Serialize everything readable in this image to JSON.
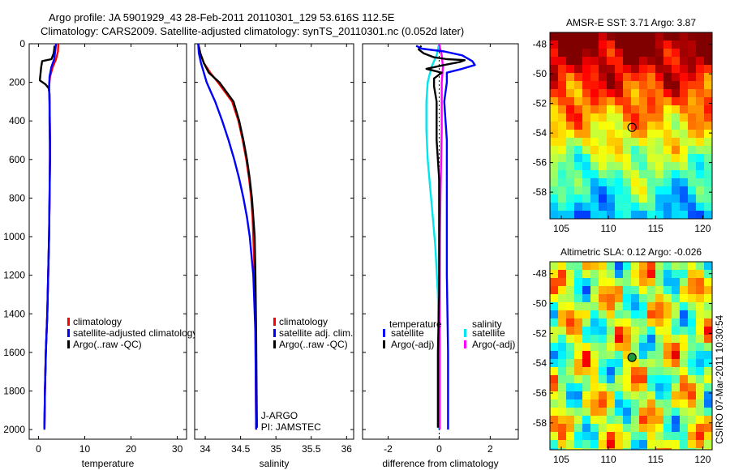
{
  "header": {
    "line1": "Argo profile: JA 5901929_43 28-Feb-2011 20110301_129 53.616S 112.5E",
    "line2": "Climatology: CARS2009. Satellite-adjusted climatology: synTS_20110301.nc (0.052d later)"
  },
  "side_label": "CSIRO 07-Mar-2011 10:30:54",
  "chart_data": [
    {
      "type": "line",
      "id": "temperature",
      "xlabel": "temperature",
      "ylabel": "",
      "xlim": [
        -2,
        32
      ],
      "ylim": [
        2050,
        0
      ],
      "xticks": [
        {
          "v": 0,
          "label": "0"
        },
        {
          "v": 10,
          "label": "10"
        },
        {
          "v": 20,
          "label": "20"
        },
        {
          "v": 30,
          "label": "30"
        }
      ],
      "yticks": [
        {
          "v": 0,
          "label": "0"
        },
        {
          "v": 200,
          "label": "200"
        },
        {
          "v": 400,
          "label": "400"
        },
        {
          "v": 600,
          "label": "600"
        },
        {
          "v": 800,
          "label": "800"
        },
        {
          "v": 1000,
          "label": "1000"
        },
        {
          "v": 1200,
          "label": "1200"
        },
        {
          "v": 1400,
          "label": "1400"
        },
        {
          "v": 1600,
          "label": "1600"
        },
        {
          "v": 1800,
          "label": "1800"
        },
        {
          "v": 2000,
          "label": "2000"
        }
      ],
      "legend": [
        {
          "label": "climatology",
          "color": "#ff0000"
        },
        {
          "label": "satellite-adjusted climatology",
          "color": "#0000ff"
        },
        {
          "label": "Argo(..raw -QC)",
          "color": "#000000"
        }
      ],
      "series": [
        {
          "name": "climatology",
          "color": "#ff0000",
          "points": [
            [
              4.3,
              0
            ],
            [
              4.2,
              40
            ],
            [
              3.8,
              80
            ],
            [
              3.1,
              120
            ],
            [
              2.5,
              170
            ],
            [
              2.3,
              220
            ],
            [
              2.4,
              300
            ],
            [
              2.5,
              500
            ],
            [
              2.4,
              800
            ],
            [
              2.3,
              1000
            ],
            [
              2.1,
              1200
            ],
            [
              1.9,
              1400
            ],
            [
              1.6,
              1600
            ],
            [
              1.4,
              1800
            ],
            [
              1.3,
              2000
            ]
          ]
        },
        {
          "name": "Argo(..raw -QC)",
          "color": "#000000",
          "points": [
            [
              3.5,
              10
            ],
            [
              3.3,
              50
            ],
            [
              2.8,
              80
            ],
            [
              0.8,
              90
            ],
            [
              0.6,
              120
            ],
            [
              0.3,
              190
            ],
            [
              1.5,
              210
            ],
            [
              2.2,
              230
            ],
            [
              2.4,
              260
            ],
            [
              2.4,
              400
            ],
            [
              2.5,
              600
            ],
            [
              2.4,
              800
            ],
            [
              2.3,
              1000
            ],
            [
              2.1,
              1200
            ],
            [
              1.9,
              1400
            ],
            [
              1.6,
              1600
            ],
            [
              1.4,
              1800
            ],
            [
              1.3,
              1990
            ]
          ]
        },
        {
          "name": "satellite-adjusted climatology",
          "color": "#0000ff",
          "points": [
            [
              3.8,
              0
            ],
            [
              3.6,
              40
            ],
            [
              3.4,
              80
            ],
            [
              2.8,
              120
            ],
            [
              2.4,
              170
            ],
            [
              2.3,
              230
            ],
            [
              2.4,
              300
            ],
            [
              2.5,
              500
            ],
            [
              2.4,
              800
            ],
            [
              2.3,
              1000
            ],
            [
              2.1,
              1200
            ],
            [
              1.9,
              1400
            ],
            [
              1.6,
              1600
            ],
            [
              1.4,
              1800
            ],
            [
              1.3,
              2000
            ]
          ]
        }
      ],
      "annotations": []
    },
    {
      "type": "line",
      "id": "salinity",
      "xlabel": "salinity",
      "ylabel": "",
      "xlim": [
        33.85,
        36.1
      ],
      "ylim": [
        2050,
        0
      ],
      "xticks": [
        {
          "v": 34,
          "label": "34"
        },
        {
          "v": 34.5,
          "label": "34.5"
        },
        {
          "v": 35,
          "label": "35"
        },
        {
          "v": 35.5,
          "label": "35.5"
        },
        {
          "v": 36,
          "label": "36"
        }
      ],
      "legend": [
        {
          "label": "climatology",
          "color": "#ff0000"
        },
        {
          "label": "satellite adj. clim.",
          "color": "#0000ff"
        },
        {
          "label": "Argo(..raw -QC)",
          "color": "#000000"
        }
      ],
      "series": [
        {
          "name": "climatology",
          "color": "#ff0000",
          "points": [
            [
              33.9,
              0
            ],
            [
              33.93,
              50
            ],
            [
              33.98,
              100
            ],
            [
              34.07,
              150
            ],
            [
              34.18,
              200
            ],
            [
              34.28,
              250
            ],
            [
              34.38,
              300
            ],
            [
              34.47,
              400
            ],
            [
              34.53,
              500
            ],
            [
              34.58,
              600
            ],
            [
              34.62,
              700
            ],
            [
              34.65,
              800
            ],
            [
              34.67,
              900
            ],
            [
              34.68,
              1000
            ],
            [
              34.7,
              1200
            ],
            [
              34.71,
              1500
            ],
            [
              34.72,
              2000
            ]
          ]
        },
        {
          "name": "Argo(..raw -QC)",
          "color": "#000000",
          "points": [
            [
              33.9,
              0
            ],
            [
              33.93,
              50
            ],
            [
              33.98,
              100
            ],
            [
              34.05,
              150
            ],
            [
              34.2,
              200
            ],
            [
              34.3,
              250
            ],
            [
              34.4,
              300
            ],
            [
              34.48,
              400
            ],
            [
              34.54,
              500
            ],
            [
              34.59,
              600
            ],
            [
              34.63,
              700
            ],
            [
              34.66,
              800
            ],
            [
              34.68,
              900
            ],
            [
              34.7,
              1000
            ],
            [
              34.71,
              1200
            ],
            [
              34.72,
              1500
            ],
            [
              34.73,
              1990
            ]
          ]
        },
        {
          "name": "satellite adj. clim.",
          "color": "#0000ff",
          "points": [
            [
              33.9,
              0
            ],
            [
              33.91,
              50
            ],
            [
              33.94,
              100
            ],
            [
              33.98,
              150
            ],
            [
              34.02,
              200
            ],
            [
              34.08,
              250
            ],
            [
              34.14,
              300
            ],
            [
              34.24,
              400
            ],
            [
              34.33,
              500
            ],
            [
              34.41,
              600
            ],
            [
              34.48,
              700
            ],
            [
              34.54,
              800
            ],
            [
              34.59,
              900
            ],
            [
              34.63,
              1000
            ],
            [
              34.68,
              1200
            ],
            [
              34.71,
              1500
            ],
            [
              34.72,
              2000
            ]
          ]
        }
      ],
      "annotations": [
        "J-ARGO",
        "PI: JAMSTEC"
      ]
    },
    {
      "type": "line",
      "id": "difference",
      "xlabel": "difference from climatology",
      "ylabel": "",
      "xlim": [
        -3,
        3.1
      ],
      "ylim": [
        2050,
        0
      ],
      "xticks": [
        {
          "v": -2,
          "label": "-2"
        },
        {
          "v": 0,
          "label": "0"
        },
        {
          "v": 2,
          "label": "2"
        }
      ],
      "legend_groups": [
        {
          "title": "temperature",
          "items": [
            {
              "label": "satellite",
              "color": "#0000ff"
            },
            {
              "label": "Argo(-adj)",
              "color": "#000000"
            }
          ]
        },
        {
          "title": "salinity",
          "items": [
            {
              "label": "satellite",
              "color": "#00e5ee"
            },
            {
              "label": "Argo(-adj)",
              "color": "#ff00ff"
            }
          ]
        }
      ],
      "series": [
        {
          "name": "salinity satellite",
          "color": "#00e5ee",
          "points": [
            [
              0,
              0
            ],
            [
              -0.1,
              60
            ],
            [
              -0.3,
              120
            ],
            [
              -0.45,
              200
            ],
            [
              -0.5,
              300
            ],
            [
              -0.5,
              450
            ],
            [
              -0.45,
              600
            ],
            [
              -0.35,
              750
            ],
            [
              -0.25,
              900
            ],
            [
              -0.15,
              1050
            ],
            [
              -0.05,
              1300
            ],
            [
              0,
              1600
            ],
            [
              0,
              2000
            ]
          ]
        },
        {
          "name": "salinity Argo(-adj)",
          "color": "#ff00ff",
          "points": [
            [
              0,
              0
            ],
            [
              0.1,
              60
            ],
            [
              0.15,
              120
            ],
            [
              0.1,
              200
            ],
            [
              0.1,
              300
            ],
            [
              0.1,
              450
            ],
            [
              0.08,
              600
            ],
            [
              0.05,
              800
            ],
            [
              0.03,
              1000
            ],
            [
              0.02,
              1300
            ],
            [
              0.02,
              2000
            ]
          ]
        },
        {
          "name": "temperature Argo(-adj)",
          "color": "#000000",
          "points": [
            [
              -0.7,
              10
            ],
            [
              -0.8,
              30
            ],
            [
              -0.6,
              50
            ],
            [
              -0.2,
              70
            ],
            [
              0.3,
              80
            ],
            [
              1.0,
              85
            ],
            [
              0.8,
              95
            ],
            [
              0.2,
              110
            ],
            [
              -0.5,
              130
            ],
            [
              0.1,
              150
            ],
            [
              -0.2,
              180
            ],
            [
              -0.2,
              220
            ],
            [
              -0.1,
              300
            ],
            [
              -0.1,
              500
            ],
            [
              0,
              700
            ],
            [
              0,
              1000
            ],
            [
              0,
              1300
            ],
            [
              -0.05,
              1600
            ],
            [
              -0.05,
              1990
            ]
          ]
        },
        {
          "name": "temperature satellite",
          "color": "#0000ff",
          "points": [
            [
              -0.9,
              10
            ],
            [
              -0.7,
              25
            ],
            [
              0.2,
              40
            ],
            [
              0.9,
              60
            ],
            [
              1.3,
              90
            ],
            [
              1.4,
              110
            ],
            [
              0.9,
              130
            ],
            [
              0.3,
              150
            ],
            [
              0.3,
              200
            ],
            [
              0.2,
              300
            ],
            [
              0.3,
              500
            ],
            [
              0.3,
              800
            ],
            [
              0.3,
              1200
            ],
            [
              0.35,
              1600
            ],
            [
              0.35,
              2000
            ]
          ]
        }
      ],
      "annotations": []
    },
    {
      "type": "heatmap",
      "id": "sst_map",
      "title": "AMSR-E SST: 3.71 Argo: 3.87",
      "xlim": [
        103.8,
        121
      ],
      "ylim": [
        -59.8,
        -47.2
      ],
      "xticks": [
        {
          "v": 105,
          "label": "105"
        },
        {
          "v": 110,
          "label": "110"
        },
        {
          "v": 115,
          "label": "115"
        },
        {
          "v": 120,
          "label": "120"
        }
      ],
      "yticks": [
        {
          "v": -48,
          "label": "-48"
        },
        {
          "v": -50,
          "label": "-50"
        },
        {
          "v": -52,
          "label": "-52"
        },
        {
          "v": -54,
          "label": "-54"
        },
        {
          "v": -56,
          "label": "-56"
        },
        {
          "v": -58,
          "label": "-58"
        }
      ],
      "marker": {
        "lon": 112.5,
        "lat": -53.616
      },
      "field": "sst"
    },
    {
      "type": "heatmap",
      "id": "sla_map",
      "title": "Altimetric SLA: 0.12 Argo: -0.026",
      "xlim": [
        103.8,
        121
      ],
      "ylim": [
        -59.8,
        -47.2
      ],
      "xticks": [
        {
          "v": 105,
          "label": "105"
        },
        {
          "v": 110,
          "label": "110"
        },
        {
          "v": 115,
          "label": "115"
        },
        {
          "v": 120,
          "label": "120"
        }
      ],
      "yticks": [
        {
          "v": -48,
          "label": "-48"
        },
        {
          "v": -50,
          "label": "-50"
        },
        {
          "v": -52,
          "label": "-52"
        },
        {
          "v": -54,
          "label": "-54"
        },
        {
          "v": -56,
          "label": "-56"
        },
        {
          "v": -58,
          "label": "-58"
        }
      ],
      "marker": {
        "lon": 112.5,
        "lat": -53.616
      },
      "field": "sla"
    }
  ]
}
